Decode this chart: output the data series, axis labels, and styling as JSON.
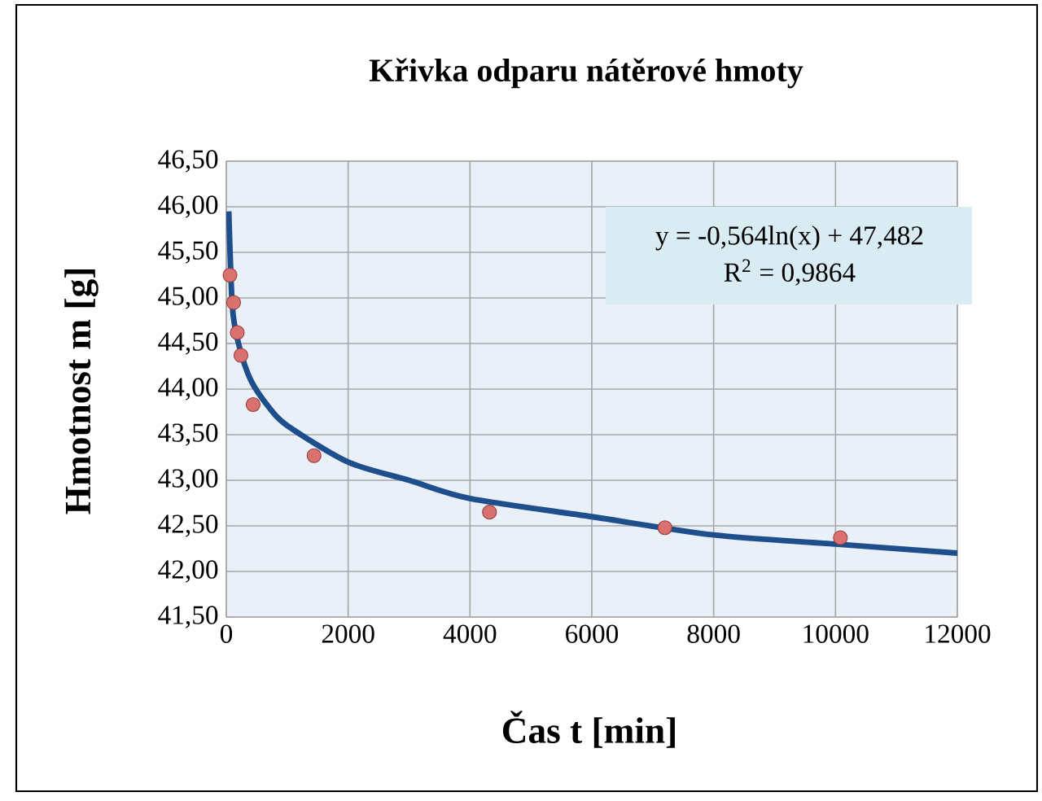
{
  "chart_data": {
    "type": "scatter",
    "title": "Křivka odparu nátěrové hmoty",
    "xlabel": "Čas  t [min]",
    "ylabel": "Hmotnost  m [g]",
    "annotations": [
      "y = -0,564ln(x) + 47,482",
      "R$^{2}$ = 0,9864"
    ],
    "series": [
      {
        "marker": "circle",
        "color": "#d9716e",
        "x": [
          60,
          120,
          180,
          240,
          440,
          1440,
          4320,
          7200,
          10080
        ],
        "values": [
          45.25,
          44.95,
          44.62,
          44.37,
          43.83,
          43.27,
          42.65,
          42.48,
          42.37
        ]
      },
      {
        "type": "line",
        "marker": "none",
        "color": "#1f4e8c",
        "x": [
          40,
          100,
          200,
          400,
          700,
          1000,
          2000,
          3000,
          4000,
          6000,
          8000,
          10000,
          12000
        ],
        "values": [
          45.95,
          44.9,
          44.5,
          44.1,
          43.8,
          43.6,
          43.2,
          43.0,
          42.8,
          42.6,
          42.4,
          42.3,
          42.2
        ]
      }
    ],
    "xlim": [
      0,
      12000
    ],
    "xticks": [
      0,
      2000,
      4000,
      6000,
      8000,
      10000,
      12000
    ],
    "ylim": [
      41.5,
      46.5
    ],
    "yticks": [
      {
        "value": 41.5,
        "label": "41,50"
      },
      {
        "value": 42,
        "label": "42,00"
      },
      {
        "value": 42.5,
        "label": "42,50"
      },
      {
        "value": 43,
        "label": "43,00"
      },
      {
        "value": 43.5,
        "label": "43,50"
      },
      {
        "value": 44,
        "label": "44,00"
      },
      {
        "value": 44.5,
        "label": "44,50"
      },
      {
        "value": 45,
        "label": "45,00"
      },
      {
        "value": 45.5,
        "label": "45,50"
      },
      {
        "value": 46,
        "label": "46,00"
      },
      {
        "value": 46.5,
        "label": "46,50"
      }
    ],
    "grid": true
  }
}
